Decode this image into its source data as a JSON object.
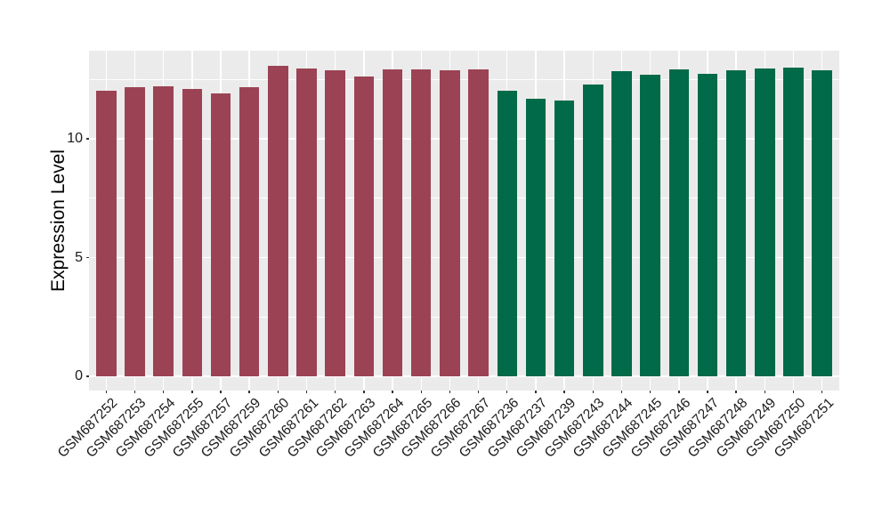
{
  "chart_data": {
    "type": "bar",
    "title": "",
    "xlabel": "",
    "ylabel": "Expression Level",
    "legend": "none",
    "grid": true,
    "categories": [
      "GSM687252",
      "GSM687253",
      "GSM687254",
      "GSM687255",
      "GSM687257",
      "GSM687259",
      "GSM687260",
      "GSM687261",
      "GSM687262",
      "GSM687263",
      "GSM687264",
      "GSM687265",
      "GSM687266",
      "GSM687267",
      "GSM687236",
      "GSM687237",
      "GSM687239",
      "GSM687243",
      "GSM687244",
      "GSM687245",
      "GSM687246",
      "GSM687247",
      "GSM687248",
      "GSM687249",
      "GSM687250",
      "GSM687251"
    ],
    "values": [
      12.02,
      12.17,
      12.21,
      12.1,
      11.92,
      12.18,
      13.07,
      12.96,
      12.89,
      12.62,
      12.91,
      12.94,
      12.88,
      12.93,
      12.02,
      11.69,
      11.6,
      12.29,
      12.83,
      12.7,
      12.92,
      12.73,
      12.89,
      12.97,
      12.98,
      12.89
    ],
    "bar_groups": [
      "maroon",
      "maroon",
      "maroon",
      "maroon",
      "maroon",
      "maroon",
      "maroon",
      "maroon",
      "maroon",
      "maroon",
      "maroon",
      "maroon",
      "maroon",
      "maroon",
      "green",
      "green",
      "green",
      "green",
      "green",
      "green",
      "green",
      "green",
      "green",
      "green",
      "green",
      "green"
    ],
    "group_colors": {
      "maroon": "#9B4354",
      "green": "#006A49"
    },
    "yticks": [
      0,
      5,
      10
    ],
    "minor_yticks": [
      2.5,
      7.5,
      12.5
    ],
    "ylim": [
      0,
      13.7
    ],
    "ylim_expanded": [
      -0.6,
      13.71
    ],
    "bar_width_ratio": 0.7,
    "panel_bg": "#EBEBEB",
    "grid_color": "#FFFFFF",
    "axis_text_color": "#1A1A1A"
  }
}
